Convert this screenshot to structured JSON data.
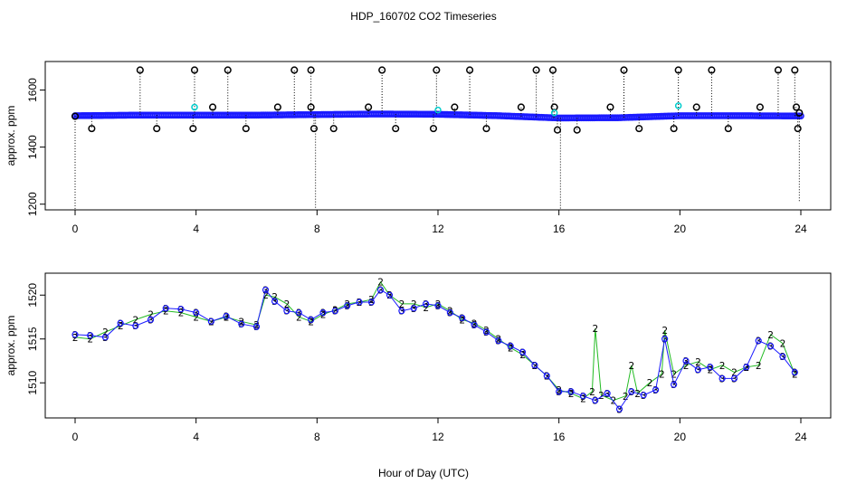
{
  "title": "HDP_160702  CO2 Timeseries",
  "xlabel": "Hour of Day (UTC)",
  "colors": {
    "axis": "#000000",
    "series_blue": "#1a1aff",
    "series_green": "#22bb22",
    "series_cyan": "#00cccc",
    "marker_black": "#000000"
  },
  "chart_data": [
    {
      "type": "scatter",
      "panel": "top",
      "xlabel": "",
      "ylabel": "approx. ppm",
      "xlim": [
        0,
        24
      ],
      "ylim": [
        1180,
        1700
      ],
      "xticks": [
        0,
        4,
        8,
        12,
        16,
        20,
        24
      ],
      "yticks": [
        1200,
        1400,
        1600
      ],
      "series": [
        {
          "marker": "o",
          "points": [
            [
              0.0,
              1508
            ],
            [
              0.55,
              1465
            ],
            [
              2.15,
              1670
            ],
            [
              2.7,
              1465
            ],
            [
              3.9,
              1465
            ],
            [
              3.95,
              1670
            ],
            [
              4.55,
              1540
            ],
            [
              5.05,
              1670
            ],
            [
              5.65,
              1465
            ],
            [
              6.7,
              1540
            ],
            [
              7.25,
              1670
            ],
            [
              7.8,
              1670
            ],
            [
              7.8,
              1540
            ],
            [
              7.9,
              1465
            ],
            [
              8.55,
              1465
            ],
            [
              9.7,
              1540
            ],
            [
              10.15,
              1670
            ],
            [
              10.6,
              1465
            ],
            [
              11.85,
              1465
            ],
            [
              11.95,
              1670
            ],
            [
              12.55,
              1540
            ],
            [
              13.05,
              1670
            ],
            [
              13.6,
              1465
            ],
            [
              14.75,
              1540
            ],
            [
              15.25,
              1670
            ],
            [
              15.8,
              1670
            ],
            [
              15.85,
              1540
            ],
            [
              15.95,
              1460
            ],
            [
              16.6,
              1460
            ],
            [
              17.7,
              1540
            ],
            [
              18.15,
              1670
            ],
            [
              18.65,
              1465
            ],
            [
              19.8,
              1465
            ],
            [
              19.95,
              1670
            ],
            [
              20.55,
              1540
            ],
            [
              21.05,
              1670
            ],
            [
              21.6,
              1465
            ],
            [
              22.65,
              1540
            ],
            [
              23.25,
              1670
            ],
            [
              23.8,
              1670
            ],
            [
              23.85,
              1540
            ],
            [
              23.9,
              1465
            ],
            [
              23.95,
              1520
            ]
          ]
        }
      ],
      "band": {
        "x": [
          0,
          2,
          4,
          6,
          8,
          10,
          12,
          14,
          16,
          18,
          20,
          22,
          24
        ],
        "y": [
          1510,
          1512,
          1512,
          1512,
          1514,
          1516,
          1515,
          1510,
          1502,
          1503,
          1510,
          1510,
          1509
        ]
      },
      "drops": [
        {
          "x": 0.0,
          "y": 1180
        },
        {
          "x": 7.95,
          "y": 1180
        },
        {
          "x": 16.05,
          "y": 1180
        },
        {
          "x": 23.95,
          "y": 1205
        }
      ]
    },
    {
      "type": "line",
      "panel": "bottom",
      "xlabel": "",
      "ylabel": "approx. ppm",
      "xlim": [
        0,
        24
      ],
      "ylim": [
        1506,
        1522.5
      ],
      "xticks": [
        0,
        4,
        8,
        12,
        16,
        20,
        24
      ],
      "yticks": [
        1510,
        1515,
        1520
      ],
      "series": [
        {
          "marker": "2",
          "x": [
            0,
            0.5,
            1,
            1.5,
            2,
            2.5,
            3,
            3.5,
            4,
            4.5,
            5,
            5.5,
            6,
            6.3,
            6.6,
            7,
            7.4,
            7.8,
            8.2,
            8.6,
            9,
            9.4,
            9.8,
            10.1,
            10.4,
            10.8,
            11.2,
            11.6,
            12,
            12.4,
            12.8,
            13.2,
            13.6,
            14,
            14.4,
            14.8,
            15.2,
            15.6,
            16,
            16.4,
            16.8,
            17.1,
            17.2,
            17.4,
            17.8,
            18.2,
            18.4,
            18.6,
            19,
            19.4,
            19.5,
            19.8,
            20.2,
            20.6,
            21,
            21.4,
            21.8,
            22.2,
            22.6,
            23,
            23.4,
            23.8
          ],
          "y": [
            1515.2,
            1515.0,
            1515.8,
            1516.5,
            1517.2,
            1517.8,
            1518.2,
            1518.0,
            1517.5,
            1517.0,
            1517.5,
            1517.0,
            1516.6,
            1520.0,
            1519.8,
            1519.0,
            1517.5,
            1517.0,
            1517.8,
            1518.3,
            1519.0,
            1519.2,
            1519.5,
            1521.5,
            1520.0,
            1519.0,
            1519.0,
            1518.6,
            1519.0,
            1518.2,
            1517.2,
            1516.8,
            1516.0,
            1515.0,
            1514.0,
            1513.2,
            1512.0,
            1510.8,
            1509.2,
            1508.8,
            1508.2,
            1509.0,
            1516.2,
            1508.6,
            1508.0,
            1508.5,
            1512.0,
            1508.8,
            1510.0,
            1511.0,
            1516.0,
            1511.0,
            1512.0,
            1512.4,
            1511.5,
            1512.0,
            1511.2,
            1511.8,
            1512.0,
            1515.5,
            1514.5,
            1511.0
          ]
        },
        {
          "marker": "3",
          "x": [
            0,
            0.5,
            1,
            1.5,
            2,
            2.5,
            3,
            3.5,
            4,
            4.5,
            5,
            5.5,
            6,
            6.3,
            6.6,
            7,
            7.4,
            7.8,
            8.2,
            8.6,
            9,
            9.4,
            9.8,
            10.1,
            10.4,
            10.8,
            11.2,
            11.6,
            12,
            12.4,
            12.8,
            13.2,
            13.6,
            14,
            14.4,
            14.8,
            15.2,
            15.6,
            16,
            16.4,
            16.8,
            17.2,
            17.6,
            18,
            18.4,
            18.8,
            19.2,
            19.5,
            19.8,
            20.2,
            20.6,
            21,
            21.4,
            21.8,
            22.2,
            22.6,
            23,
            23.4,
            23.8
          ],
          "y": [
            1515.5,
            1515.4,
            1515.2,
            1516.8,
            1516.5,
            1517.2,
            1518.5,
            1518.4,
            1518.0,
            1517.0,
            1517.6,
            1516.7,
            1516.4,
            1520.6,
            1519.3,
            1518.2,
            1518.0,
            1517.2,
            1518.0,
            1518.2,
            1518.8,
            1519.2,
            1519.2,
            1520.6,
            1520.0,
            1518.2,
            1518.5,
            1519.0,
            1518.8,
            1518.0,
            1517.4,
            1516.6,
            1515.8,
            1514.8,
            1514.2,
            1513.5,
            1512.0,
            1510.8,
            1509.0,
            1509.0,
            1508.5,
            1508.0,
            1508.8,
            1507.0,
            1509.0,
            1508.6,
            1509.2,
            1515.0,
            1509.8,
            1512.5,
            1511.5,
            1511.8,
            1510.5,
            1510.5,
            1511.8,
            1514.8,
            1514.2,
            1513.0,
            1511.2
          ]
        }
      ]
    }
  ]
}
